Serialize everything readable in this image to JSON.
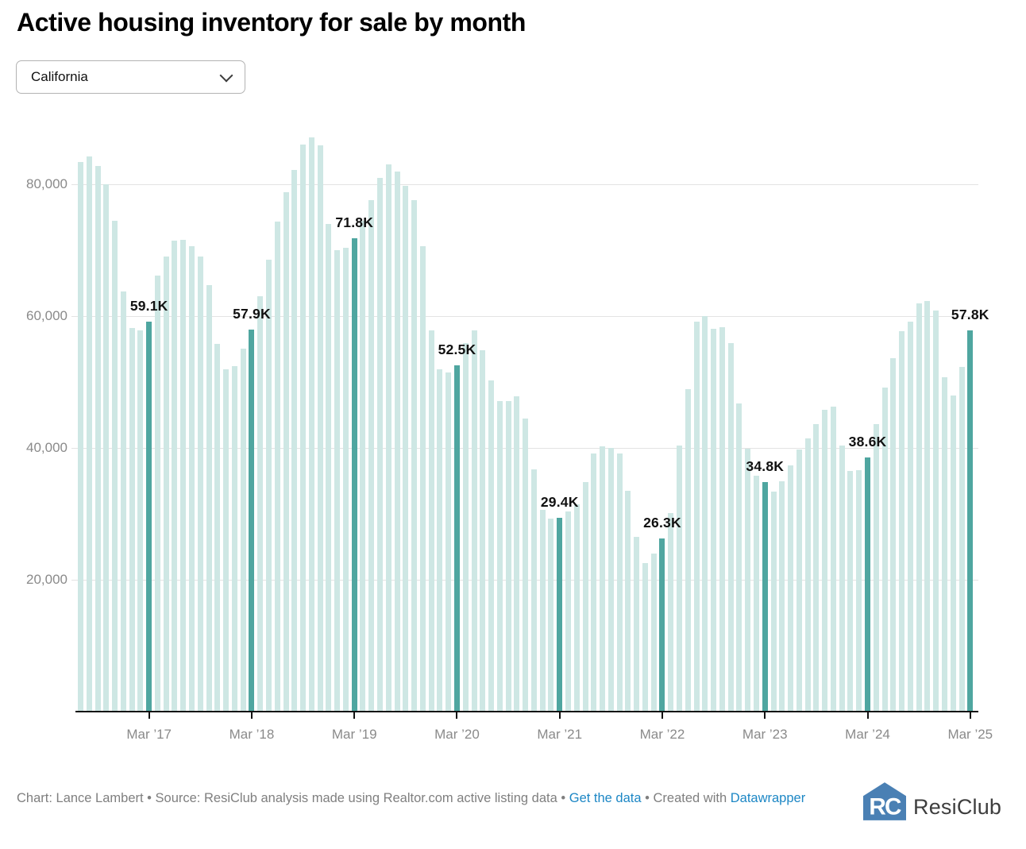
{
  "title": "Active housing inventory for sale by month",
  "dropdown": {
    "value": "California"
  },
  "chart_data": {
    "type": "bar",
    "title": "Active housing inventory for sale by month",
    "region_selected": "California",
    "unit": "listings",
    "values_unit": "thousands",
    "x_start_month": "Jul 2016",
    "x_frequency": "monthly",
    "values": [
      83.4,
      84.2,
      82.8,
      80.0,
      74.4,
      63.7,
      58.2,
      57.8,
      59.1,
      66.1,
      69.0,
      71.5,
      71.6,
      70.6,
      69.0,
      64.7,
      55.8,
      51.9,
      52.4,
      55.1,
      57.9,
      63.0,
      68.5,
      74.3,
      78.8,
      82.2,
      86.0,
      87.1,
      85.9,
      74.0,
      70.0,
      70.4,
      71.8,
      74.4,
      77.6,
      81.0,
      83.0,
      81.9,
      79.8,
      77.6,
      70.6,
      57.8,
      51.9,
      51.4,
      52.5,
      55.9,
      57.8,
      54.8,
      50.3,
      47.1,
      47.1,
      47.8,
      44.5,
      36.7,
      30.6,
      29.3,
      29.4,
      30.4,
      31.5,
      34.8,
      39.1,
      40.2,
      40.0,
      39.1,
      33.5,
      26.5,
      22.5,
      24.0,
      26.3,
      30.1,
      40.4,
      48.9,
      59.2,
      60.0,
      58.1,
      58.3,
      55.9,
      46.8,
      39.9,
      35.8,
      34.8,
      33.4,
      35.0,
      37.3,
      39.7,
      41.5,
      43.6,
      45.8,
      46.3,
      40.4,
      36.5,
      36.6,
      38.6,
      43.6,
      49.1,
      53.6,
      57.7,
      59.2,
      61.9,
      62.3,
      60.8,
      50.7,
      48.0,
      52.3,
      57.8
    ],
    "highlights": [
      {
        "index": 8,
        "label": "59.1K"
      },
      {
        "index": 20,
        "label": "57.9K"
      },
      {
        "index": 32,
        "label": "71.8K"
      },
      {
        "index": 44,
        "label": "52.5K"
      },
      {
        "index": 56,
        "label": "29.4K"
      },
      {
        "index": 68,
        "label": "26.3K"
      },
      {
        "index": 80,
        "label": "34.8K"
      },
      {
        "index": 92,
        "label": "38.6K"
      },
      {
        "index": 104,
        "label": "57.8K"
      }
    ],
    "x_tick_labels": [
      "Mar ’17",
      "Mar ’18",
      "Mar ’19",
      "Mar ’20",
      "Mar ’21",
      "Mar ’22",
      "Mar ’23",
      "Mar ’24",
      "Mar ’25"
    ],
    "y_ticks": [
      {
        "value": 20,
        "label": "20,000"
      },
      {
        "value": 40,
        "label": "40,000"
      },
      {
        "value": 60,
        "label": "60,000"
      },
      {
        "value": 80,
        "label": "80,000"
      }
    ],
    "ylim": [
      0,
      95
    ],
    "grid": true,
    "legend": false
  },
  "colors": {
    "bar_light": "#cee7e4",
    "bar_highlight": "#4fa6a0",
    "axis_line": "#111111",
    "grid_line": "#e3e3e3",
    "axis_text": "#8a8a8a",
    "annotation_text": "#111111",
    "link_blue": "#1d87c5",
    "logo_blue": "#4a80b4"
  },
  "footer": {
    "text_before_link": "Chart: Lance Lambert • Source: ResiClub analysis made using Realtor.com active listing data • ",
    "get_data_label": "Get the data",
    "text_between": " • Created with ",
    "datawrapper_label": "Datawrapper"
  },
  "logo": {
    "monogram": "RC",
    "name": "ResiClub"
  }
}
